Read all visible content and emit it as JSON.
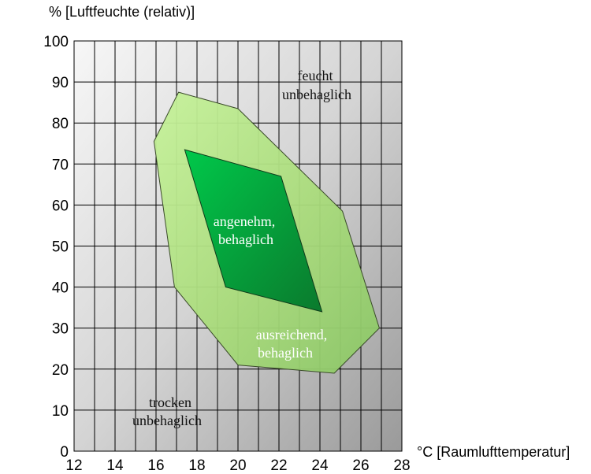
{
  "chart_data": {
    "type": "area",
    "ylabel": "% [Luftfeuchte (relativ)]",
    "xlabel": "°C [Raumlufttemperatur]",
    "xlim": [
      12,
      28
    ],
    "ylim": [
      0,
      100
    ],
    "x_ticks": [
      "12",
      "14",
      "16",
      "18",
      "20",
      "22",
      "24",
      "26",
      "28"
    ],
    "y_ticks": [
      "0",
      "10",
      "20",
      "30",
      "40",
      "50",
      "60",
      "70",
      "80",
      "90",
      "100"
    ],
    "grid": true,
    "zones": [
      {
        "name": "ausreichend, behaglich",
        "label_lines": [
          "ausreichend,",
          "behaglich"
        ],
        "color": "#b5e88a",
        "points": [
          [
            17.1,
            87.5
          ],
          [
            20.0,
            83.5
          ],
          [
            25.1,
            58.5
          ],
          [
            26.9,
            30.0
          ],
          [
            24.7,
            19.0
          ],
          [
            20.0,
            21.0
          ],
          [
            16.9,
            40.0
          ],
          [
            15.9,
            75.5
          ]
        ]
      },
      {
        "name": "angenehm, behaglich",
        "label_lines": [
          "angenehm,",
          "behaglich"
        ],
        "color": "#1fae45",
        "points": [
          [
            17.4,
            73.5
          ],
          [
            22.1,
            67.0
          ],
          [
            24.1,
            34.0
          ],
          [
            19.4,
            40.0
          ]
        ]
      }
    ],
    "region_labels": [
      {
        "lines": [
          "feucht",
          "unbehaglich"
        ]
      },
      {
        "lines": [
          "trocken",
          "unbehaglich"
        ]
      }
    ]
  }
}
